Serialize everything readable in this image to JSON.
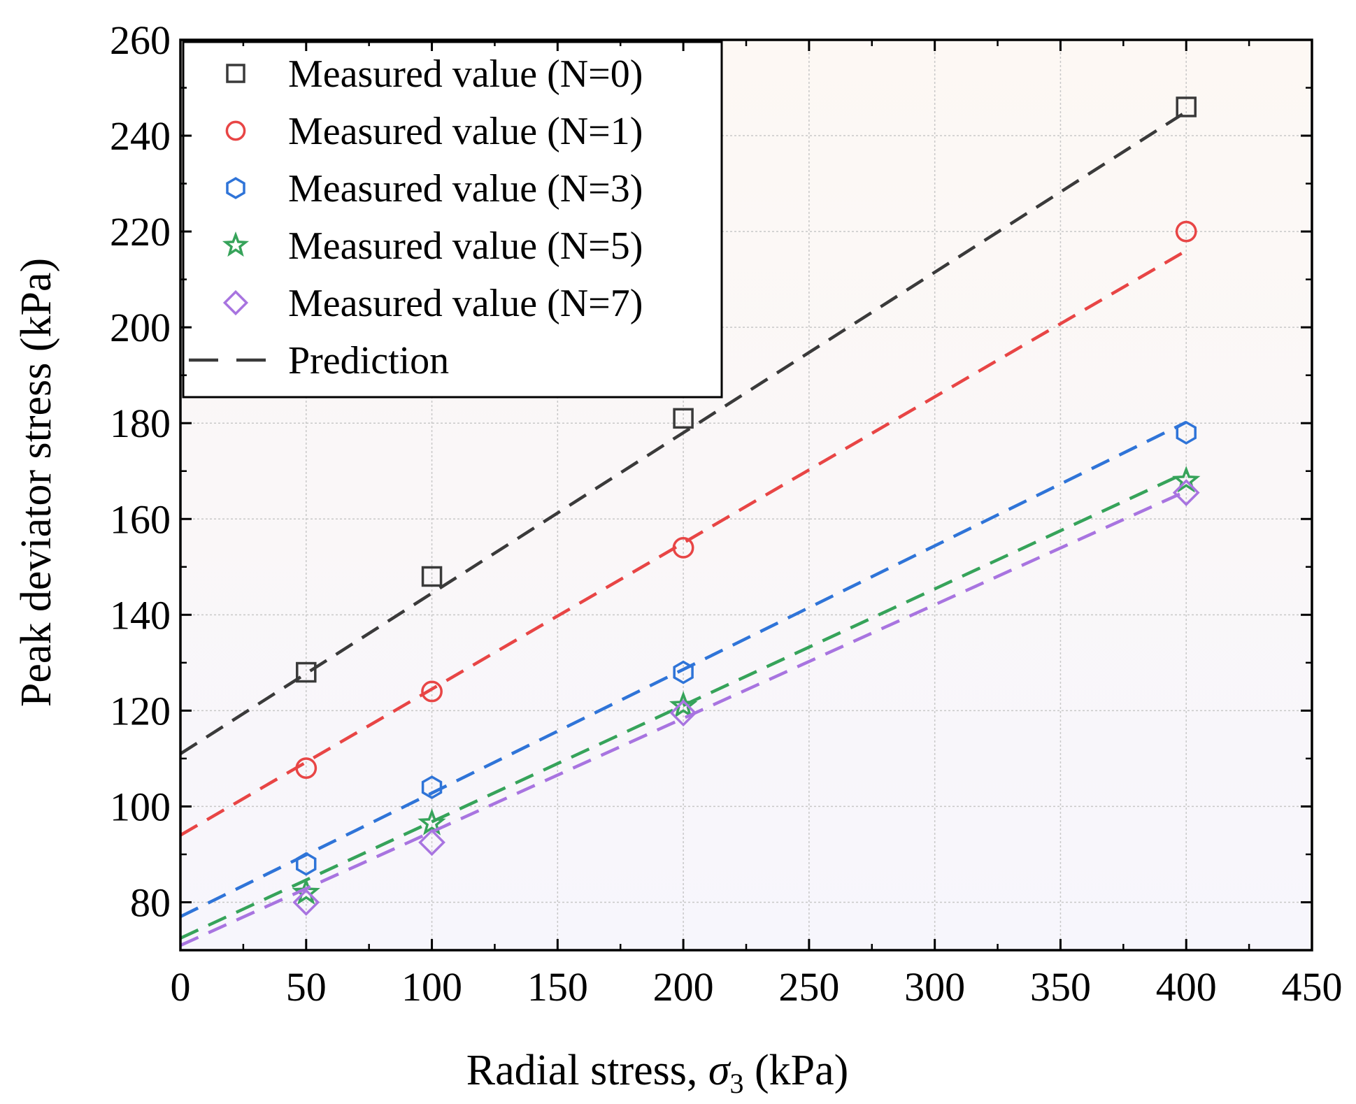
{
  "chart_data": {
    "type": "scatter",
    "xlabel": "Radial stress, σ3 (kPa)",
    "xlabel_parts": {
      "main": "Radial stress, ",
      "symbol": "σ",
      "subscript": "3",
      "unit": " (kPa)"
    },
    "ylabel": "Peak deviator stress (kPa)",
    "xlim": [
      0,
      450
    ],
    "ylim": [
      70,
      260
    ],
    "xticks": [
      0,
      50,
      100,
      150,
      200,
      250,
      300,
      350,
      400,
      450
    ],
    "yticks": [
      80,
      100,
      120,
      140,
      160,
      180,
      200,
      220,
      240,
      260
    ],
    "xtick_labels": [
      "0",
      "50",
      "100",
      "150",
      "200",
      "250",
      "300",
      "350",
      "400",
      "450"
    ],
    "ytick_labels": [
      "80",
      "100",
      "120",
      "140",
      "160",
      "180",
      "200",
      "220",
      "240",
      "260"
    ],
    "grid": true,
    "legend_position": "top-left",
    "series": [
      {
        "name": "Measured value (N=0)",
        "marker": "square",
        "color": "#3a3a3a",
        "x": [
          50,
          100,
          200,
          400
        ],
        "y": [
          128,
          148,
          181,
          246
        ],
        "fit": {
          "intercept": 111,
          "slope": 0.335
        }
      },
      {
        "name": "Measured value (N=1)",
        "marker": "circle",
        "color": "#e84545",
        "x": [
          50,
          100,
          200,
          400
        ],
        "y": [
          108,
          124,
          154,
          220
        ],
        "fit": {
          "intercept": 94,
          "slope": 0.305
        }
      },
      {
        "name": "Measured value (N=3)",
        "marker": "hexagon",
        "color": "#2f74d8",
        "x": [
          50,
          100,
          200,
          400
        ],
        "y": [
          88,
          104,
          128,
          178
        ],
        "fit": {
          "intercept": 77,
          "slope": 0.258
        }
      },
      {
        "name": "Measured value (N=5)",
        "marker": "star",
        "color": "#36a35a",
        "x": [
          50,
          100,
          200,
          400
        ],
        "y": [
          82,
          96.5,
          121,
          168
        ],
        "fit": {
          "intercept": 72.5,
          "slope": 0.243
        }
      },
      {
        "name": "Measured value (N=7)",
        "marker": "diamond",
        "color": "#a874e0",
        "x": [
          50,
          100,
          200,
          400
        ],
        "y": [
          80,
          92.5,
          119.5,
          165.5
        ],
        "fit": {
          "intercept": 71,
          "slope": 0.237
        }
      }
    ],
    "prediction_label": "Prediction",
    "prediction_color": "#3a3a3a"
  }
}
